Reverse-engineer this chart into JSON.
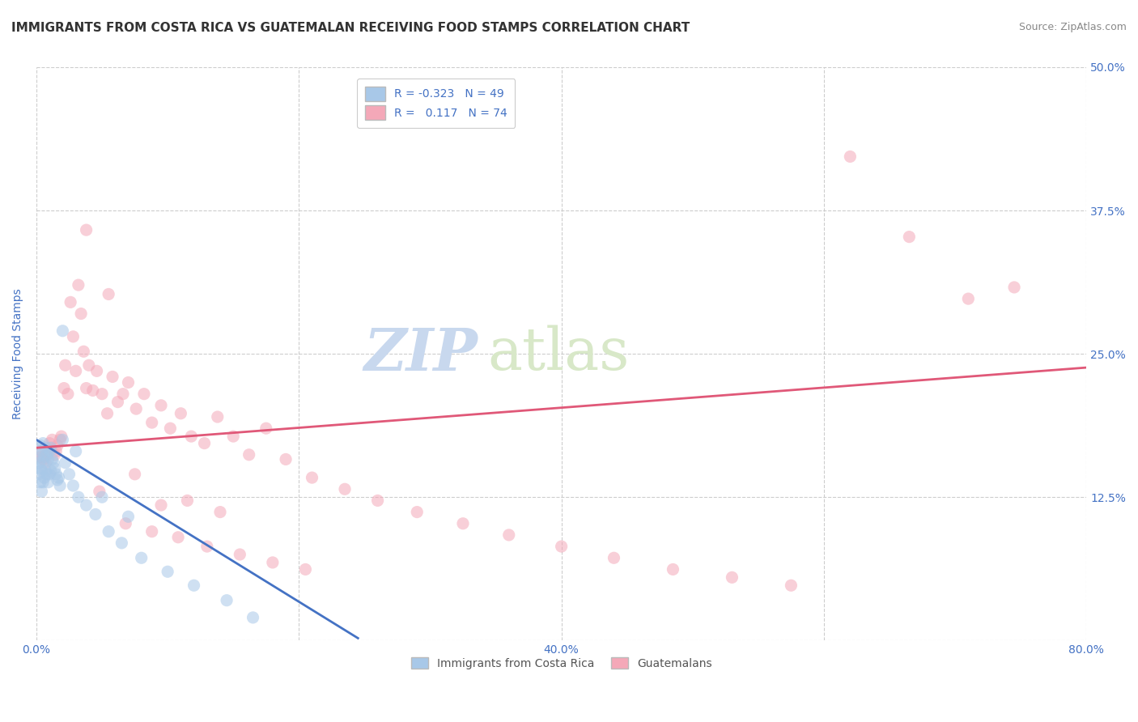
{
  "title": "IMMIGRANTS FROM COSTA RICA VS GUATEMALAN RECEIVING FOOD STAMPS CORRELATION CHART",
  "source_text": "Source: ZipAtlas.com",
  "ylabel": "Receiving Food Stamps",
  "xlim": [
    0,
    0.8
  ],
  "ylim": [
    0,
    0.5
  ],
  "xticks": [
    0.0,
    0.2,
    0.4,
    0.6,
    0.8
  ],
  "yticks": [
    0.0,
    0.125,
    0.25,
    0.375,
    0.5
  ],
  "xtick_labels": [
    "0.0%",
    "",
    "40.0%",
    "",
    "80.0%"
  ],
  "right_ytick_labels": [
    "",
    "12.5%",
    "25.0%",
    "37.5%",
    "50.0%"
  ],
  "watermark": "ZIPatlas",
  "legend_entries": [
    {
      "label": "Immigrants from Costa Rica",
      "color": "#aec6e8",
      "R": "-0.323",
      "N": "49"
    },
    {
      "label": "Guatemalans",
      "color": "#f4a7b0",
      "R": "0.117",
      "N": "74"
    }
  ],
  "blue_scatter_x": [
    0.001,
    0.002,
    0.002,
    0.003,
    0.003,
    0.003,
    0.004,
    0.004,
    0.004,
    0.005,
    0.005,
    0.005,
    0.006,
    0.006,
    0.007,
    0.007,
    0.008,
    0.008,
    0.009,
    0.009,
    0.01,
    0.01,
    0.011,
    0.011,
    0.012,
    0.013,
    0.014,
    0.015,
    0.016,
    0.017,
    0.018,
    0.02,
    0.022,
    0.025,
    0.028,
    0.032,
    0.038,
    0.045,
    0.055,
    0.065,
    0.08,
    0.1,
    0.12,
    0.145,
    0.165,
    0.02,
    0.03,
    0.05,
    0.07
  ],
  "blue_scatter_y": [
    0.16,
    0.155,
    0.145,
    0.17,
    0.15,
    0.138,
    0.165,
    0.148,
    0.13,
    0.172,
    0.155,
    0.138,
    0.16,
    0.142,
    0.168,
    0.148,
    0.162,
    0.145,
    0.158,
    0.138,
    0.165,
    0.145,
    0.168,
    0.148,
    0.158,
    0.155,
    0.15,
    0.145,
    0.14,
    0.142,
    0.135,
    0.27,
    0.155,
    0.145,
    0.135,
    0.125,
    0.118,
    0.11,
    0.095,
    0.085,
    0.072,
    0.06,
    0.048,
    0.035,
    0.02,
    0.175,
    0.165,
    0.125,
    0.108
  ],
  "pink_scatter_x": [
    0.002,
    0.004,
    0.005,
    0.007,
    0.008,
    0.01,
    0.011,
    0.012,
    0.014,
    0.015,
    0.016,
    0.018,
    0.019,
    0.021,
    0.022,
    0.024,
    0.026,
    0.028,
    0.03,
    0.032,
    0.034,
    0.036,
    0.038,
    0.04,
    0.043,
    0.046,
    0.05,
    0.054,
    0.058,
    0.062,
    0.066,
    0.07,
    0.076,
    0.082,
    0.088,
    0.095,
    0.102,
    0.11,
    0.118,
    0.128,
    0.138,
    0.15,
    0.162,
    0.175,
    0.19,
    0.21,
    0.235,
    0.26,
    0.29,
    0.325,
    0.36,
    0.4,
    0.44,
    0.485,
    0.53,
    0.575,
    0.62,
    0.665,
    0.71,
    0.745,
    0.038,
    0.055,
    0.075,
    0.095,
    0.115,
    0.14,
    0.048,
    0.068,
    0.088,
    0.108,
    0.13,
    0.155,
    0.18,
    0.205
  ],
  "pink_scatter_y": [
    0.165,
    0.16,
    0.158,
    0.155,
    0.162,
    0.172,
    0.168,
    0.175,
    0.162,
    0.165,
    0.17,
    0.175,
    0.178,
    0.22,
    0.24,
    0.215,
    0.295,
    0.265,
    0.235,
    0.31,
    0.285,
    0.252,
    0.22,
    0.24,
    0.218,
    0.235,
    0.215,
    0.198,
    0.23,
    0.208,
    0.215,
    0.225,
    0.202,
    0.215,
    0.19,
    0.205,
    0.185,
    0.198,
    0.178,
    0.172,
    0.195,
    0.178,
    0.162,
    0.185,
    0.158,
    0.142,
    0.132,
    0.122,
    0.112,
    0.102,
    0.092,
    0.082,
    0.072,
    0.062,
    0.055,
    0.048,
    0.422,
    0.352,
    0.298,
    0.308,
    0.358,
    0.302,
    0.145,
    0.118,
    0.122,
    0.112,
    0.13,
    0.102,
    0.095,
    0.09,
    0.082,
    0.075,
    0.068,
    0.062
  ],
  "blue_line_x": [
    0.0,
    0.245
  ],
  "blue_line_y": [
    0.175,
    0.002
  ],
  "pink_line_x": [
    0.0,
    0.8
  ],
  "pink_line_y": [
    0.168,
    0.238
  ],
  "dot_size": 120,
  "dot_alpha": 0.55,
  "blue_dot_color": "#a8c8e8",
  "pink_dot_color": "#f4a8b8",
  "blue_line_color": "#4472c4",
  "pink_line_color": "#e05878",
  "grid_color": "#c8c8c8",
  "bg_color": "#ffffff",
  "title_color": "#333333",
  "tick_label_color": "#4472c4",
  "source_color": "#888888",
  "title_fontsize": 11,
  "axis_label_fontsize": 10,
  "tick_fontsize": 10,
  "legend_fontsize": 10,
  "watermark_color_zip": "#c8d8ee",
  "watermark_color_atlas": "#d8e8c8",
  "watermark_fontsize": 52
}
